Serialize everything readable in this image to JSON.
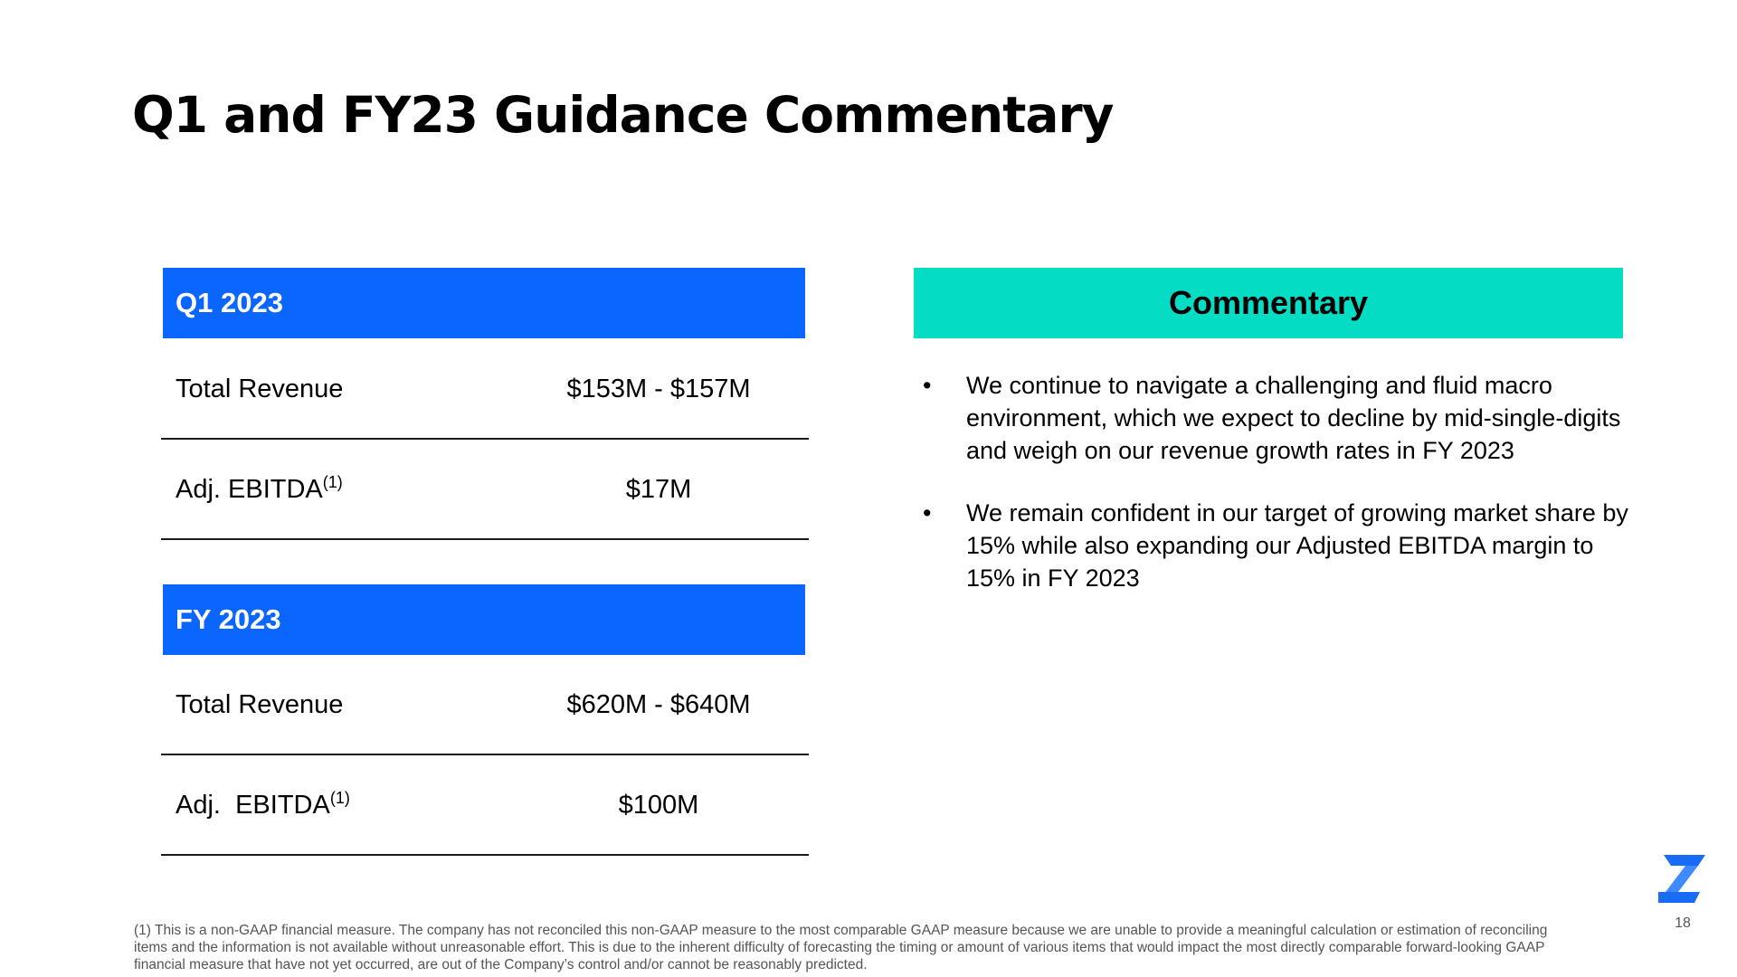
{
  "title": "Q1 and FY23 Guidance Commentary",
  "tables": [
    {
      "header": "Q1 2023",
      "rows": [
        {
          "label": "Total Revenue",
          "sup": "",
          "value": "$153M - $157M"
        },
        {
          "label": "Adj. EBITDA",
          "sup": "(1)",
          "value": "$17M"
        }
      ]
    },
    {
      "header": "FY 2023",
      "rows": [
        {
          "label": "Total Revenue",
          "sup": "",
          "value": "$620M - $640M"
        },
        {
          "label": "Adj.  EBITDA",
          "sup": "(1)",
          "value": "$100M"
        }
      ]
    }
  ],
  "commentary": {
    "header": "Commentary",
    "bullet_symbol": "•",
    "bullets": [
      "We continue to navigate a challenging and fluid macro environment, which we expect to decline by mid-single-digits and weigh on our revenue growth rates in FY 2023",
      "We remain confident in our target of growing market share by 15% while also expanding our Adjusted EBITDA margin to 15% in FY 2023"
    ]
  },
  "footnote": "(1) This is a non-GAAP financial measure. The company has not reconciled this non-GAAP measure to the most comparable GAAP measure because we are unable to provide a meaningful calculation or estimation of reconciling items and the information is not available without unreasonable effort. This is due to the inherent difficulty of forecasting the timing or amount of various items that would impact the most directly comparable forward-looking GAAP financial measure that have not yet occurred, are out of the Company’s control and/or cannot be reasonably predicted.",
  "page_number": "18",
  "colors": {
    "table_header": "#0a66ff",
    "commentary_header": "#05dcc4",
    "logo": "#1a6cf5"
  },
  "logo_icon": "z-logo-icon"
}
